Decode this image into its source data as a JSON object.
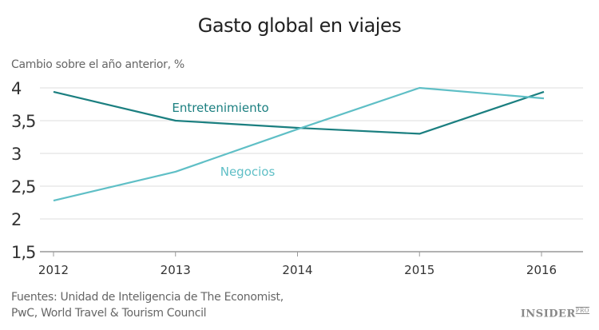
{
  "chart_data": {
    "type": "line",
    "title": "Gasto global en viajes",
    "ylabel": "Cambio sobre el año anterior, %",
    "xlabel": "",
    "categories": [
      "2012",
      "2013",
      "2014",
      "2015",
      "2016"
    ],
    "yticks": [
      "1,5",
      "2",
      "2,5",
      "3",
      "3,5",
      "4"
    ],
    "ytick_values": [
      1.5,
      2,
      2.5,
      3,
      3.5,
      4
    ],
    "ylim": [
      1.5,
      4
    ],
    "grid": true,
    "series": [
      {
        "name": "Entretenimiento",
        "color": "#1b7f80",
        "values": [
          3.94,
          3.5,
          3.39,
          3.3,
          3.94
        ]
      },
      {
        "name": "Negocios",
        "color": "#5fbfc6",
        "values": [
          2.28,
          2.72,
          3.37,
          4.0,
          3.84
        ]
      }
    ]
  },
  "source": {
    "line1": "Fuentes: Unidad de Inteligencia de The Economist,",
    "line2": "PwC, World Travel & Tourism Council"
  },
  "logo": {
    "text": "INSIDER",
    "sup": "PRO"
  }
}
